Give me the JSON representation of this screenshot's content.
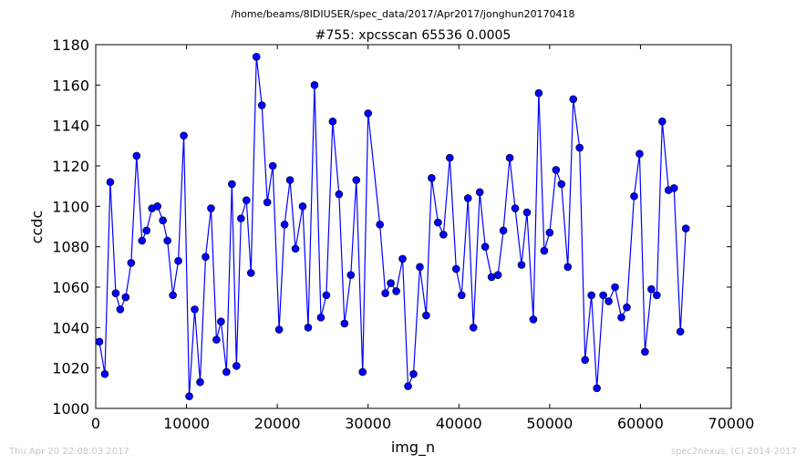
{
  "chart_data": {
    "type": "line",
    "suptitle": "/home/beams/8IDIUSER/spec_data/2017/Apr2017/jonghun20170418",
    "title": "#755: xpcsscan 65536 0.0005",
    "x_label": "img_n",
    "y_label": "ccdc",
    "footer_left": "Thu Apr 20 22:08:03 2017",
    "footer_right": "spec2nexus, (C) 2014-2017",
    "xlim": [
      0,
      70000
    ],
    "xticks": [
      0,
      10000,
      20000,
      30000,
      40000,
      50000,
      60000,
      70000
    ],
    "ylim": [
      1000,
      1180
    ],
    "yticks": [
      1000,
      1020,
      1040,
      1060,
      1080,
      1100,
      1120,
      1140,
      1160,
      1180
    ],
    "series": [
      {
        "color": "#0000ff",
        "x": [
          400,
          1000,
          1600,
          2200,
          2700,
          3300,
          3900,
          4500,
          5100,
          5600,
          6200,
          6800,
          7400,
          7900,
          8500,
          9100,
          9700,
          10300,
          10900,
          11500,
          12100,
          12700,
          13300,
          13800,
          14400,
          15000,
          15500,
          16000,
          16600,
          17100,
          17700,
          18300,
          18900,
          19500,
          20200,
          20800,
          21400,
          22000,
          22800,
          23400,
          24100,
          24800,
          25400,
          26100,
          26800,
          27400,
          28100,
          28700,
          29400,
          30000,
          31300,
          31900,
          32500,
          33100,
          33800,
          34400,
          35000,
          35700,
          36400,
          37000,
          37700,
          38300,
          39000,
          39700,
          40300,
          41000,
          41600,
          42300,
          42900,
          43600,
          44300,
          44900,
          45600,
          46200,
          46900,
          47500,
          48200,
          48800,
          49400,
          50000,
          50700,
          51300,
          52000,
          52600,
          53300,
          53900,
          54600,
          55200,
          55900,
          56500,
          57200,
          57900,
          58500,
          59300,
          59900,
          60500,
          61200,
          61800,
          62400,
          63100,
          63700,
          64400,
          65000
        ],
        "values": [
          1033,
          1017,
          1112,
          1057,
          1049,
          1055,
          1072,
          1125,
          1083,
          1088,
          1099,
          1100,
          1093,
          1083,
          1056,
          1073,
          1135,
          1006,
          1049,
          1013,
          1075,
          1099,
          1034,
          1043,
          1018,
          1111,
          1021,
          1094,
          1103,
          1067,
          1174,
          1150,
          1102,
          1120,
          1039,
          1091,
          1113,
          1079,
          1100,
          1040,
          1160,
          1045,
          1056,
          1142,
          1106,
          1042,
          1066,
          1113,
          1018,
          1146,
          1091,
          1057,
          1062,
          1058,
          1074,
          1011,
          1017,
          1070,
          1046,
          1114,
          1092,
          1086,
          1124,
          1069,
          1056,
          1104,
          1040,
          1107,
          1080,
          1065,
          1066,
          1088,
          1124,
          1099,
          1071,
          1097,
          1044,
          1156,
          1078,
          1087,
          1118,
          1111,
          1070,
          1153,
          1129,
          1024,
          1056,
          1010,
          1056,
          1053,
          1060,
          1045,
          1050,
          1105,
          1126,
          1028,
          1059,
          1056,
          1142,
          1108,
          1109,
          1038,
          1089
        ]
      }
    ]
  }
}
